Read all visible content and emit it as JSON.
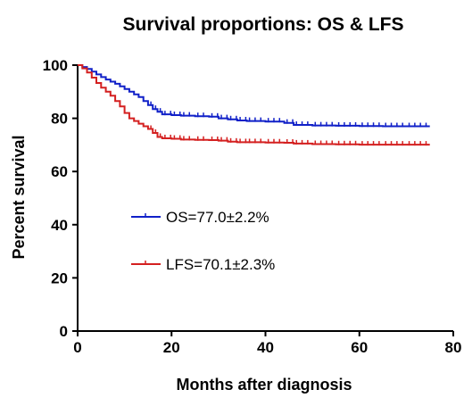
{
  "chart_data": {
    "type": "line",
    "title": "Survival proportions: OS & LFS",
    "xlabel": "Months after diagnosis",
    "ylabel": "Percent survival",
    "xlim": [
      0,
      80
    ],
    "ylim": [
      0,
      100
    ],
    "xticks": [
      0,
      20,
      40,
      60,
      80
    ],
    "yticks": [
      0,
      20,
      40,
      60,
      80,
      100
    ],
    "grid": false,
    "legend_placement": "center-left",
    "series": [
      {
        "name": "OS=77.0±2.2%",
        "color": "#1020c8",
        "x": [
          0,
          1,
          2,
          3,
          4,
          5,
          6,
          7,
          8,
          9,
          10,
          11,
          12,
          13,
          14,
          15,
          16,
          17,
          18,
          20,
          22,
          25,
          28,
          30,
          32,
          34,
          36,
          40,
          44,
          46,
          50,
          55,
          60,
          65,
          70,
          75
        ],
        "y": [
          100,
          99.3,
          98.6,
          97.6,
          96.5,
          95.5,
          94.6,
          93.8,
          93,
          92,
          91,
          90,
          89,
          88,
          86.5,
          85,
          83.5,
          82.5,
          81.5,
          81.2,
          81,
          80.8,
          80.6,
          80,
          79.6,
          79.2,
          79,
          78.8,
          78.3,
          77.5,
          77.3,
          77.2,
          77.1,
          77,
          77,
          77
        ]
      },
      {
        "name": "LFS=70.1±2.3%",
        "color": "#d42020",
        "x": [
          0,
          1,
          2,
          3,
          4,
          5,
          6,
          7,
          8,
          9,
          10,
          11,
          12,
          13,
          14,
          15,
          16,
          17,
          18,
          20,
          22,
          25,
          28,
          30,
          32,
          34,
          36,
          40,
          44,
          46,
          50,
          55,
          60,
          65,
          70,
          75
        ],
        "y": [
          100,
          98.8,
          97.2,
          95.3,
          93.3,
          91.5,
          90,
          88.5,
          86.5,
          84.5,
          82,
          80,
          79,
          78,
          77,
          76,
          74.5,
          73,
          72.5,
          72.3,
          72,
          71.9,
          71.8,
          71.6,
          71.2,
          71,
          71,
          70.9,
          70.8,
          70.5,
          70.3,
          70.2,
          70.1,
          70.1,
          70.1,
          70.1
        ]
      }
    ]
  }
}
